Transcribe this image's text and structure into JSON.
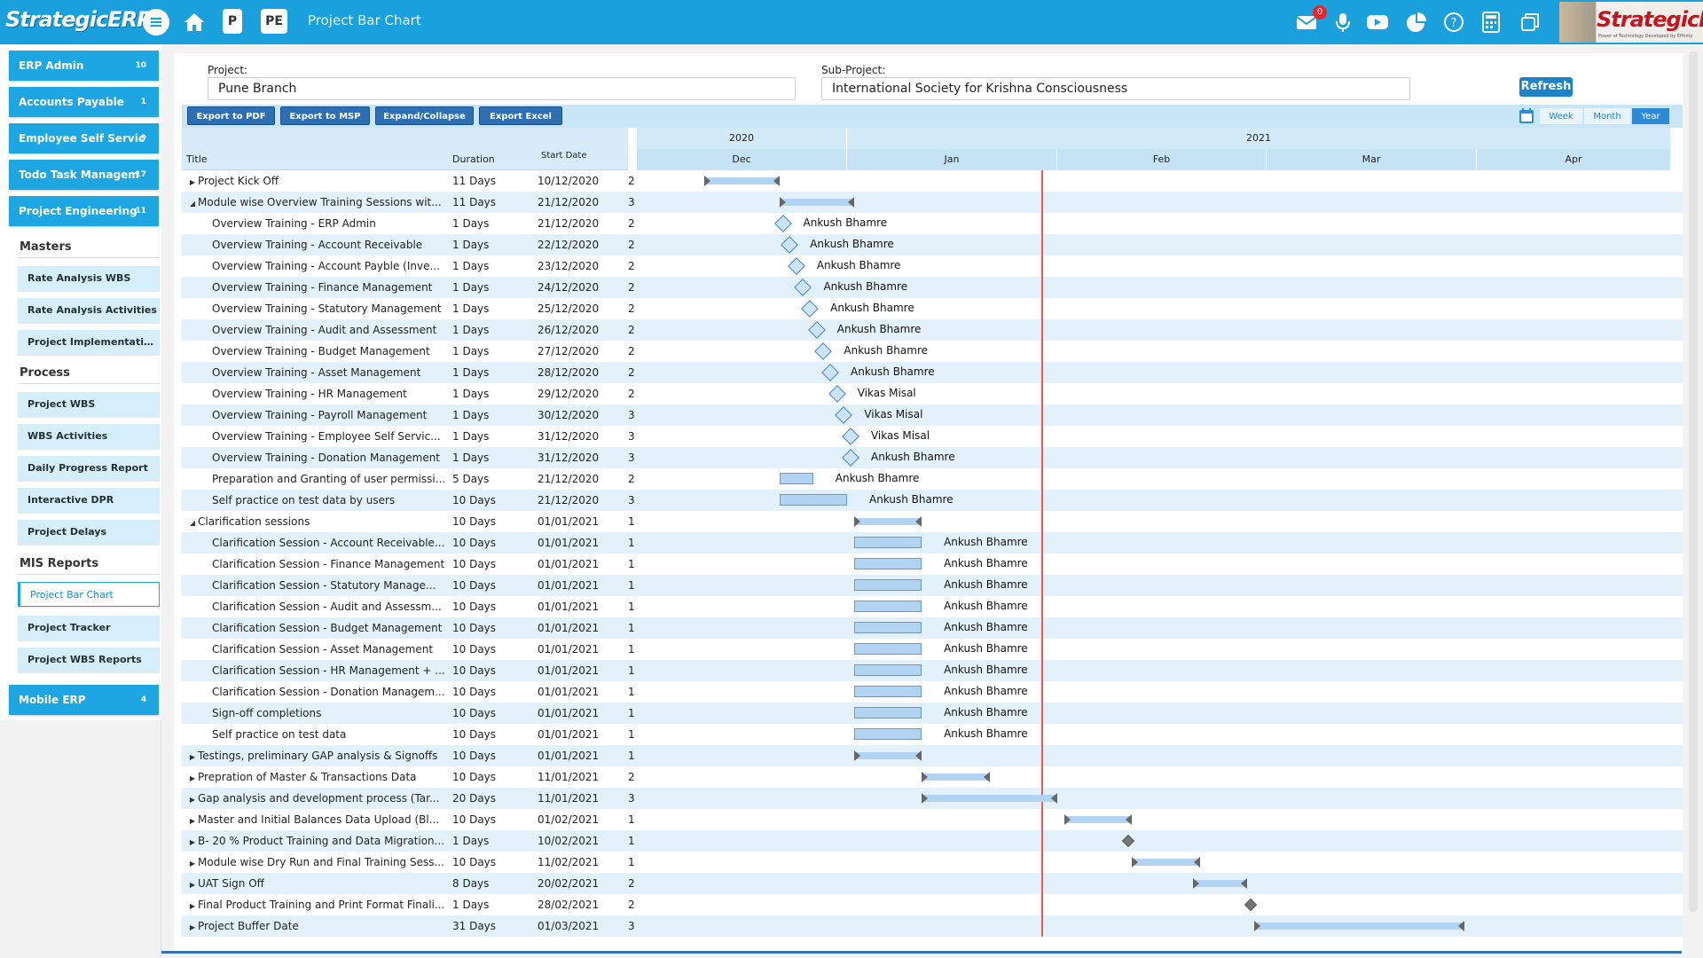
{
  "app": {
    "brand": "StrategicERP",
    "nav_title": "Project Bar Chart",
    "box_p": "P",
    "box_pe": "PE",
    "mail_badge": "0",
    "avatar_text": "StrategicERP",
    "avatar_sub": "Power of Technology Developed by Effinity",
    "icons": [
      "menu-icon",
      "home-icon",
      "mail-icon",
      "mic-icon",
      "youtube-icon",
      "pie-chart-icon",
      "help-icon",
      "calculator-icon",
      "windows-icon"
    ]
  },
  "sidebar": {
    "main_items": [
      {
        "label": "ERP Admin",
        "count": "10"
      },
      {
        "label": "Accounts Payable",
        "count": "1"
      },
      {
        "label": "Employee Self Servic",
        "count": "9"
      },
      {
        "label": "Todo Task Managem",
        "count": "17"
      },
      {
        "label": "Project Engineering",
        "count": "11"
      }
    ],
    "sections": [
      {
        "title": "Masters",
        "items": [
          "Rate Analysis WBS",
          "Rate Analysis Activities",
          "Project Implementation D.."
        ]
      },
      {
        "title": "Process",
        "items": [
          "Project WBS",
          "WBS Activities",
          "Daily Progress Report",
          "Interactive DPR",
          "Project Delays"
        ]
      },
      {
        "title": "MIS Reports",
        "items": [
          "Project Bar Chart",
          "Project Tracker",
          "Project WBS Reports"
        ]
      }
    ],
    "active_item": "Project Bar Chart",
    "bottom_item": {
      "label": "Mobile ERP",
      "count": "4"
    }
  },
  "filters": {
    "project_label": "Project:",
    "project_value": "Pune Branch",
    "subproject_label": "Sub-Project:",
    "subproject_value": "International Society for Krishna Consciousness",
    "refresh_label": "Refresh"
  },
  "toolbar": {
    "buttons": [
      "Export to PDF",
      "Export to MSP",
      "Expand/Collapse",
      "Export Excel"
    ],
    "zoom": [
      "Week",
      "Month",
      "Year"
    ],
    "zoom_active": "Year"
  },
  "grid": {
    "headers": {
      "title": "Title",
      "duration": "Duration",
      "start": "Start Date"
    }
  },
  "timeline": {
    "years": [
      {
        "label": "2020"
      },
      {
        "label": "2021"
      }
    ],
    "months": [
      "Dec",
      "Jan",
      "Feb",
      "Mar",
      "Apr"
    ]
  },
  "tasks": [
    {
      "title": "Project Kick Off",
      "duration": "11 Days",
      "start": "10/12/2020",
      "extra": "2",
      "indent": 0,
      "arrow": "right",
      "type": "parent",
      "s": "2020-12-10",
      "d": 11
    },
    {
      "title": "Module wise Overview Training Sessions wit...",
      "duration": "11 Days",
      "start": "21/12/2020",
      "extra": "3",
      "indent": 0,
      "arrow": "down",
      "type": "parent",
      "s": "2020-12-21",
      "d": 11
    },
    {
      "title": "Overview Training - ERP Admin",
      "duration": "1 Days",
      "start": "21/12/2020",
      "extra": "2",
      "indent": 1,
      "type": "milestone",
      "s": "2020-12-21",
      "res": "Ankush Bhamre"
    },
    {
      "title": "Overview Training - Account Receivable",
      "duration": "1 Days",
      "start": "22/12/2020",
      "extra": "2",
      "indent": 1,
      "type": "milestone",
      "s": "2020-12-22",
      "res": "Ankush Bhamre"
    },
    {
      "title": "Overview Training - Account Payble (Inve...",
      "duration": "1 Days",
      "start": "23/12/2020",
      "extra": "2",
      "indent": 1,
      "type": "milestone",
      "s": "2020-12-23",
      "res": "Ankush Bhamre"
    },
    {
      "title": "Overview Training - Finance Management",
      "duration": "1 Days",
      "start": "24/12/2020",
      "extra": "2",
      "indent": 1,
      "type": "milestone",
      "s": "2020-12-24",
      "res": "Ankush Bhamre"
    },
    {
      "title": "Overview Training - Statutory Management",
      "duration": "1 Days",
      "start": "25/12/2020",
      "extra": "2",
      "indent": 1,
      "type": "milestone",
      "s": "2020-12-25",
      "res": "Ankush Bhamre"
    },
    {
      "title": "Overview Training - Audit and Assessment",
      "duration": "1 Days",
      "start": "26/12/2020",
      "extra": "2",
      "indent": 1,
      "type": "milestone",
      "s": "2020-12-26",
      "res": "Ankush Bhamre"
    },
    {
      "title": "Overview Training - Budget Management",
      "duration": "1 Days",
      "start": "27/12/2020",
      "extra": "2",
      "indent": 1,
      "type": "milestone",
      "s": "2020-12-27",
      "res": "Ankush Bhamre"
    },
    {
      "title": "Overview Training - Asset Management",
      "duration": "1 Days",
      "start": "28/12/2020",
      "extra": "2",
      "indent": 1,
      "type": "milestone",
      "s": "2020-12-28",
      "res": "Ankush Bhamre"
    },
    {
      "title": "Overview Training - HR Management",
      "duration": "1 Days",
      "start": "29/12/2020",
      "extra": "2",
      "indent": 1,
      "type": "milestone",
      "s": "2020-12-29",
      "res": "Vikas Misal"
    },
    {
      "title": "Overview Training - Payroll Management",
      "duration": "1 Days",
      "start": "30/12/2020",
      "extra": "3",
      "indent": 1,
      "type": "milestone",
      "s": "2020-12-30",
      "res": "Vikas Misal"
    },
    {
      "title": "Overview Training - Employee Self Servic...",
      "duration": "1 Days",
      "start": "31/12/2020",
      "extra": "3",
      "indent": 1,
      "type": "milestone",
      "s": "2020-12-31",
      "res": "Vikas Misal"
    },
    {
      "title": "Overview Training - Donation Management",
      "duration": "1 Days",
      "start": "31/12/2020",
      "extra": "3",
      "indent": 1,
      "type": "milestone",
      "s": "2020-12-31",
      "res": "Ankush Bhamre"
    },
    {
      "title": "Preparation and Granting of user permissi...",
      "duration": "5 Days",
      "start": "21/12/2020",
      "extra": "2",
      "indent": 1,
      "type": "task",
      "s": "2020-12-21",
      "d": 5,
      "res": "Ankush Bhamre"
    },
    {
      "title": "Self practice on test data by users",
      "duration": "10 Days",
      "start": "21/12/2020",
      "extra": "3",
      "indent": 1,
      "type": "task",
      "s": "2020-12-21",
      "d": 10,
      "res": "Ankush Bhamre"
    },
    {
      "title": "Clarification sessions",
      "duration": "10 Days",
      "start": "01/01/2021",
      "extra": "1",
      "indent": 0,
      "arrow": "down",
      "type": "parent",
      "s": "2021-01-01",
      "d": 10
    },
    {
      "title": "Clarification Session - Account Receivable...",
      "duration": "10 Days",
      "start": "01/01/2021",
      "extra": "1",
      "indent": 1,
      "type": "task",
      "s": "2021-01-01",
      "d": 10,
      "res": "Ankush Bhamre"
    },
    {
      "title": "Clarification Session - Finance Management",
      "duration": "10 Days",
      "start": "01/01/2021",
      "extra": "1",
      "indent": 1,
      "type": "task",
      "s": "2021-01-01",
      "d": 10,
      "res": "Ankush Bhamre"
    },
    {
      "title": "Clarification Session - Statutory Manage...",
      "duration": "10 Days",
      "start": "01/01/2021",
      "extra": "1",
      "indent": 1,
      "type": "task",
      "s": "2021-01-01",
      "d": 10,
      "res": "Ankush Bhamre"
    },
    {
      "title": "Clarification Session - Audit and Assessm...",
      "duration": "10 Days",
      "start": "01/01/2021",
      "extra": "1",
      "indent": 1,
      "type": "task",
      "s": "2021-01-01",
      "d": 10,
      "res": "Ankush Bhamre"
    },
    {
      "title": "Clarification Session - Budget Management",
      "duration": "10 Days",
      "start": "01/01/2021",
      "extra": "1",
      "indent": 1,
      "type": "task",
      "s": "2021-01-01",
      "d": 10,
      "res": "Ankush Bhamre"
    },
    {
      "title": "Clarification Session - Asset Management",
      "duration": "10 Days",
      "start": "01/01/2021",
      "extra": "1",
      "indent": 1,
      "type": "task",
      "s": "2021-01-01",
      "d": 10,
      "res": "Ankush Bhamre"
    },
    {
      "title": "Clarification Session - HR Management + ...",
      "duration": "10 Days",
      "start": "01/01/2021",
      "extra": "1",
      "indent": 1,
      "type": "task",
      "s": "2021-01-01",
      "d": 10,
      "res": "Ankush Bhamre"
    },
    {
      "title": "Clarification Session - Donation Managem...",
      "duration": "10 Days",
      "start": "01/01/2021",
      "extra": "1",
      "indent": 1,
      "type": "task",
      "s": "2021-01-01",
      "d": 10,
      "res": "Ankush Bhamre"
    },
    {
      "title": "Sign-off completions",
      "duration": "10 Days",
      "start": "01/01/2021",
      "extra": "1",
      "indent": 1,
      "type": "task",
      "s": "2021-01-01",
      "d": 10,
      "res": "Ankush Bhamre"
    },
    {
      "title": "Self practice on test data",
      "duration": "10 Days",
      "start": "01/01/2021",
      "extra": "1",
      "indent": 1,
      "type": "task",
      "s": "2021-01-01",
      "d": 10,
      "res": "Ankush Bhamre"
    },
    {
      "title": "Testings, preliminary GAP analysis & Signoffs",
      "duration": "10 Days",
      "start": "01/01/2021",
      "extra": "1",
      "indent": 0,
      "arrow": "right",
      "type": "parent",
      "s": "2021-01-01",
      "d": 10
    },
    {
      "title": "Prepration of Master & Transactions Data",
      "duration": "10 Days",
      "start": "11/01/2021",
      "extra": "2",
      "indent": 0,
      "arrow": "right",
      "type": "parent",
      "s": "2021-01-11",
      "d": 10
    },
    {
      "title": "Gap analysis and development process (Tar...",
      "duration": "20 Days",
      "start": "11/01/2021",
      "extra": "3",
      "indent": 0,
      "arrow": "right",
      "type": "parent",
      "s": "2021-01-11",
      "d": 20
    },
    {
      "title": "Master and Initial Balances Data Upload (Bl...",
      "duration": "10 Days",
      "start": "01/02/2021",
      "extra": "1",
      "indent": 0,
      "arrow": "right",
      "type": "parent",
      "s": "2021-02-01",
      "d": 10
    },
    {
      "title": "B- 20 % Product Training and Data Migration...",
      "duration": "1 Days",
      "start": "10/02/2021",
      "extra": "1",
      "indent": 0,
      "arrow": "right",
      "type": "pmilestone",
      "s": "2021-02-10"
    },
    {
      "title": "Module wise Dry Run and Final Training Sess...",
      "duration": "10 Days",
      "start": "11/02/2021",
      "extra": "1",
      "indent": 0,
      "arrow": "right",
      "type": "parent",
      "s": "2021-02-11",
      "d": 10
    },
    {
      "title": "UAT Sign Off",
      "duration": "8 Days",
      "start": "20/02/2021",
      "extra": "2",
      "indent": 0,
      "arrow": "right",
      "type": "parent",
      "s": "2021-02-20",
      "d": 8
    },
    {
      "title": "Final Product Training and Print Format Finali...",
      "duration": "1 Days",
      "start": "28/02/2021",
      "extra": "2",
      "indent": 0,
      "arrow": "right",
      "type": "pmilestone",
      "s": "2021-02-28"
    },
    {
      "title": "Project Buffer Date",
      "duration": "31 Days",
      "start": "01/03/2021",
      "extra": "3",
      "indent": 0,
      "arrow": "right",
      "type": "parent",
      "s": "2021-03-01",
      "d": 31
    }
  ]
}
